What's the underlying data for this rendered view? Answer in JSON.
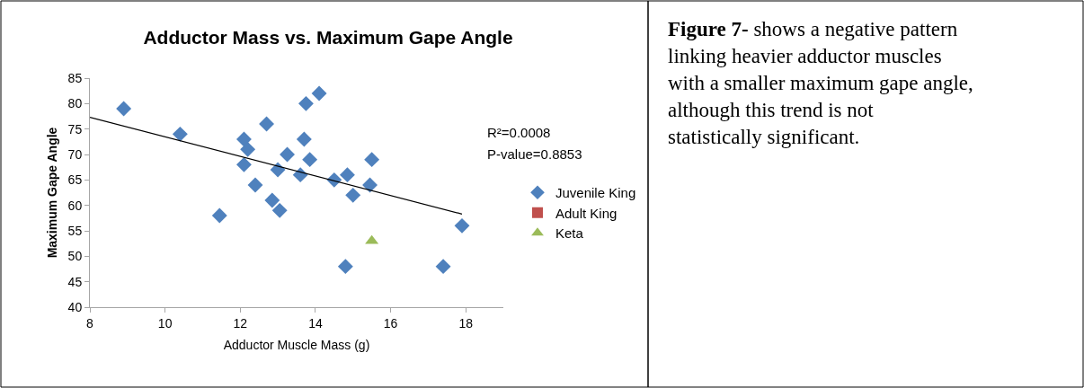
{
  "chart_data": {
    "type": "scatter",
    "title": "Adductor Mass vs. Maximum Gape Angle",
    "xlabel": "Adductor Muscle Mass (g)",
    "ylabel": "Maximum Gape Angle",
    "xlim": [
      8,
      19
    ],
    "xticks": [
      8,
      10,
      12,
      14,
      16,
      18
    ],
    "ylim": [
      40,
      85
    ],
    "yticks": [
      40,
      45,
      50,
      55,
      60,
      65,
      70,
      75,
      80,
      85
    ],
    "grid": false,
    "legend": "right",
    "series": [
      {
        "name": "Juvenile King",
        "color": "#4f81bd",
        "marker": "diamond",
        "x": [
          8.9,
          10.4,
          11.45,
          12.1,
          12.1,
          12.2,
          12.4,
          12.7,
          12.85,
          13.0,
          13.05,
          13.25,
          13.6,
          13.7,
          13.75,
          13.85,
          14.1,
          14.5,
          14.8,
          14.85,
          15.0,
          15.45,
          15.5,
          17.4,
          17.9
        ],
        "values": [
          79,
          74,
          58,
          68,
          73,
          71,
          64,
          76,
          61,
          67,
          59,
          70,
          66,
          73,
          80,
          69,
          82,
          65,
          48,
          66,
          62,
          64,
          69,
          48,
          56
        ]
      },
      {
        "name": "Adult King",
        "color": "#c0504d",
        "marker": "square"
      },
      {
        "name": "Keta",
        "color": "#9bbb59",
        "marker": "triangle",
        "x": [
          15.5
        ],
        "values": [
          53
        ]
      },
      {
        "type": "line",
        "color": "#000000",
        "x": [
          8,
          17.9
        ],
        "values": [
          77.3,
          58.3
        ]
      }
    ],
    "annotations": [
      "R²=0.0008",
      "P-value=0.8853",
      "Figure 7- shows a negative pattern linking heavier adductor muscles with a smaller maximum gape angle, although this trend is not statistically significant."
    ]
  }
}
